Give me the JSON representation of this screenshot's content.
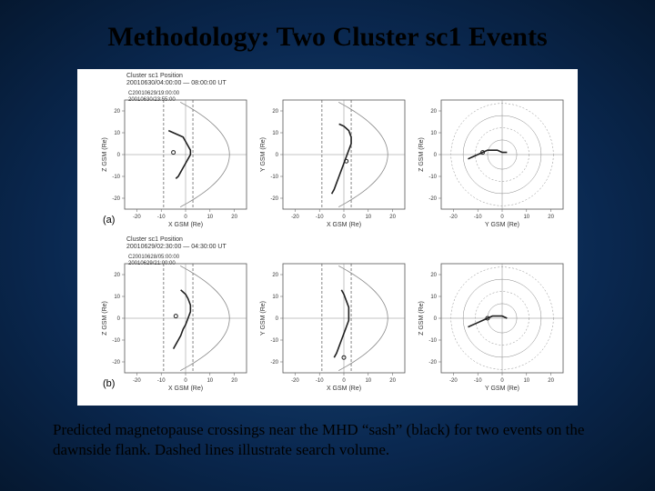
{
  "title": "Methodology: Two Cluster sc1 Events",
  "caption": "Predicted magnetopause crossings near the MHD “sash” (black) for two events on the dawnside flank. Dashed lines illustrate search volume.",
  "figure": {
    "background_color": "#ffffff",
    "axis_color": "#555555",
    "grid_color": "#888888",
    "curve_color": "#202020",
    "dashed_color": "#555555",
    "tick_fontsize": 6,
    "label_fontsize": 7,
    "line_width": 1.0,
    "curve_width": 1.6,
    "rows": [
      {
        "label": "(a)",
        "header": {
          "line1": "Cluster sc1 Position",
          "line2": "20010630/04:00:00 — 08:00:00 UT",
          "legend1": "C20010629/19:00:00",
          "legend2": "20010630/23:55:00"
        },
        "panels": [
          {
            "xlabel": "X GSM (Re)",
            "ylabel": "Z GSM (Re)",
            "xlim": [
              -25,
              25
            ],
            "ylim": [
              -25,
              25
            ],
            "ticks": [
              -20,
              -10,
              0,
              10,
              20
            ],
            "dashed_x": [
              -9,
              3
            ],
            "boundary": {
              "type": "parabola",
              "a": 18,
              "b": -0.035
            },
            "trajectory": [
              [
                -4,
                -11
              ],
              [
                -3,
                -10
              ],
              [
                -2,
                -8
              ],
              [
                -1,
                -6
              ],
              [
                0,
                -4
              ],
              [
                1,
                -2
              ],
              [
                2,
                0
              ],
              [
                2,
                2
              ],
              [
                1,
                4
              ],
              [
                0,
                6
              ],
              [
                -1,
                8
              ],
              [
                -3,
                9
              ],
              [
                -5,
                10
              ],
              [
                -7,
                11
              ]
            ],
            "marker": [
              -5,
              1
            ]
          },
          {
            "xlabel": "X GSM (Re)",
            "ylabel": "Y GSM (Re)",
            "xlim": [
              -25,
              25
            ],
            "ylim": [
              -25,
              25
            ],
            "ticks": [
              -20,
              -10,
              0,
              10,
              20
            ],
            "dashed_x": [
              -9,
              3
            ],
            "boundary": {
              "type": "parabola",
              "a": 18,
              "b": -0.035
            },
            "trajectory": [
              [
                -5,
                -18
              ],
              [
                -4,
                -16
              ],
              [
                -3,
                -13
              ],
              [
                -2,
                -10
              ],
              [
                -1,
                -7
              ],
              [
                0,
                -4
              ],
              [
                1,
                -1
              ],
              [
                2,
                2
              ],
              [
                3,
                5
              ],
              [
                3,
                8
              ],
              [
                2,
                11
              ],
              [
                0,
                13
              ],
              [
                -2,
                14
              ]
            ],
            "marker": [
              1,
              -3
            ]
          },
          {
            "xlabel": "Y GSM (Re)",
            "ylabel": "Z GSM (Re)",
            "xlim": [
              -25,
              25
            ],
            "ylim": [
              -25,
              25
            ],
            "ticks": [
              -20,
              -10,
              0,
              10,
              20
            ],
            "circles": [
              6,
              11,
              16,
              21
            ],
            "trajectory": [
              [
                -14,
                -2
              ],
              [
                -12,
                -1
              ],
              [
                -10,
                0
              ],
              [
                -8,
                1
              ],
              [
                -6,
                2
              ],
              [
                -4,
                2
              ],
              [
                -2,
                2
              ],
              [
                0,
                1
              ],
              [
                2,
                1
              ]
            ],
            "marker": [
              -8,
              1
            ]
          }
        ]
      },
      {
        "label": "(b)",
        "header": {
          "line1": "Cluster sc1 Position",
          "line2": "20010629/02:30:00 — 04:30:00 UT",
          "legend1": "C20010628/05:00:00",
          "legend2": "20010629/21:00:00"
        },
        "panels": [
          {
            "xlabel": "X GSM (Re)",
            "ylabel": "Z GSM (Re)",
            "xlim": [
              -25,
              25
            ],
            "ylim": [
              -25,
              25
            ],
            "ticks": [
              -20,
              -10,
              0,
              10,
              20
            ],
            "dashed_x": [
              -9,
              3
            ],
            "boundary": {
              "type": "parabola",
              "a": 18,
              "b": -0.035
            },
            "trajectory": [
              [
                -5,
                -14
              ],
              [
                -4,
                -12
              ],
              [
                -3,
                -10
              ],
              [
                -2,
                -8
              ],
              [
                -1,
                -5
              ],
              [
                0,
                -3
              ],
              [
                1,
                0
              ],
              [
                2,
                3
              ],
              [
                2,
                6
              ],
              [
                1,
                9
              ],
              [
                0,
                11
              ],
              [
                -2,
                13
              ]
            ],
            "marker": [
              -4,
              1
            ]
          },
          {
            "xlabel": "X GSM (Re)",
            "ylabel": "Y GSM (Re)",
            "xlim": [
              -25,
              25
            ],
            "ylim": [
              -25,
              25
            ],
            "ticks": [
              -20,
              -10,
              0,
              10,
              20
            ],
            "dashed_x": [
              -9,
              3
            ],
            "boundary": {
              "type": "parabola",
              "a": 18,
              "b": -0.035
            },
            "trajectory": [
              [
                -4,
                -18
              ],
              [
                -3,
                -16
              ],
              [
                -2,
                -13
              ],
              [
                -1,
                -10
              ],
              [
                0,
                -7
              ],
              [
                1,
                -4
              ],
              [
                2,
                -1
              ],
              [
                2,
                2
              ],
              [
                2,
                5
              ],
              [
                1,
                8
              ],
              [
                0,
                11
              ],
              [
                -1,
                13
              ]
            ],
            "marker": [
              0,
              -18
            ]
          },
          {
            "xlabel": "Y GSM (Re)",
            "ylabel": "Z GSM (Re)",
            "xlim": [
              -25,
              25
            ],
            "ylim": [
              -25,
              25
            ],
            "ticks": [
              -20,
              -10,
              0,
              10,
              20
            ],
            "circles": [
              6,
              11,
              16,
              21
            ],
            "trajectory": [
              [
                -14,
                -4
              ],
              [
                -12,
                -3
              ],
              [
                -10,
                -2
              ],
              [
                -8,
                -1
              ],
              [
                -6,
                0
              ],
              [
                -4,
                1
              ],
              [
                -2,
                1
              ],
              [
                0,
                1
              ],
              [
                2,
                0
              ]
            ],
            "marker": [
              -6,
              0
            ]
          }
        ]
      }
    ]
  }
}
